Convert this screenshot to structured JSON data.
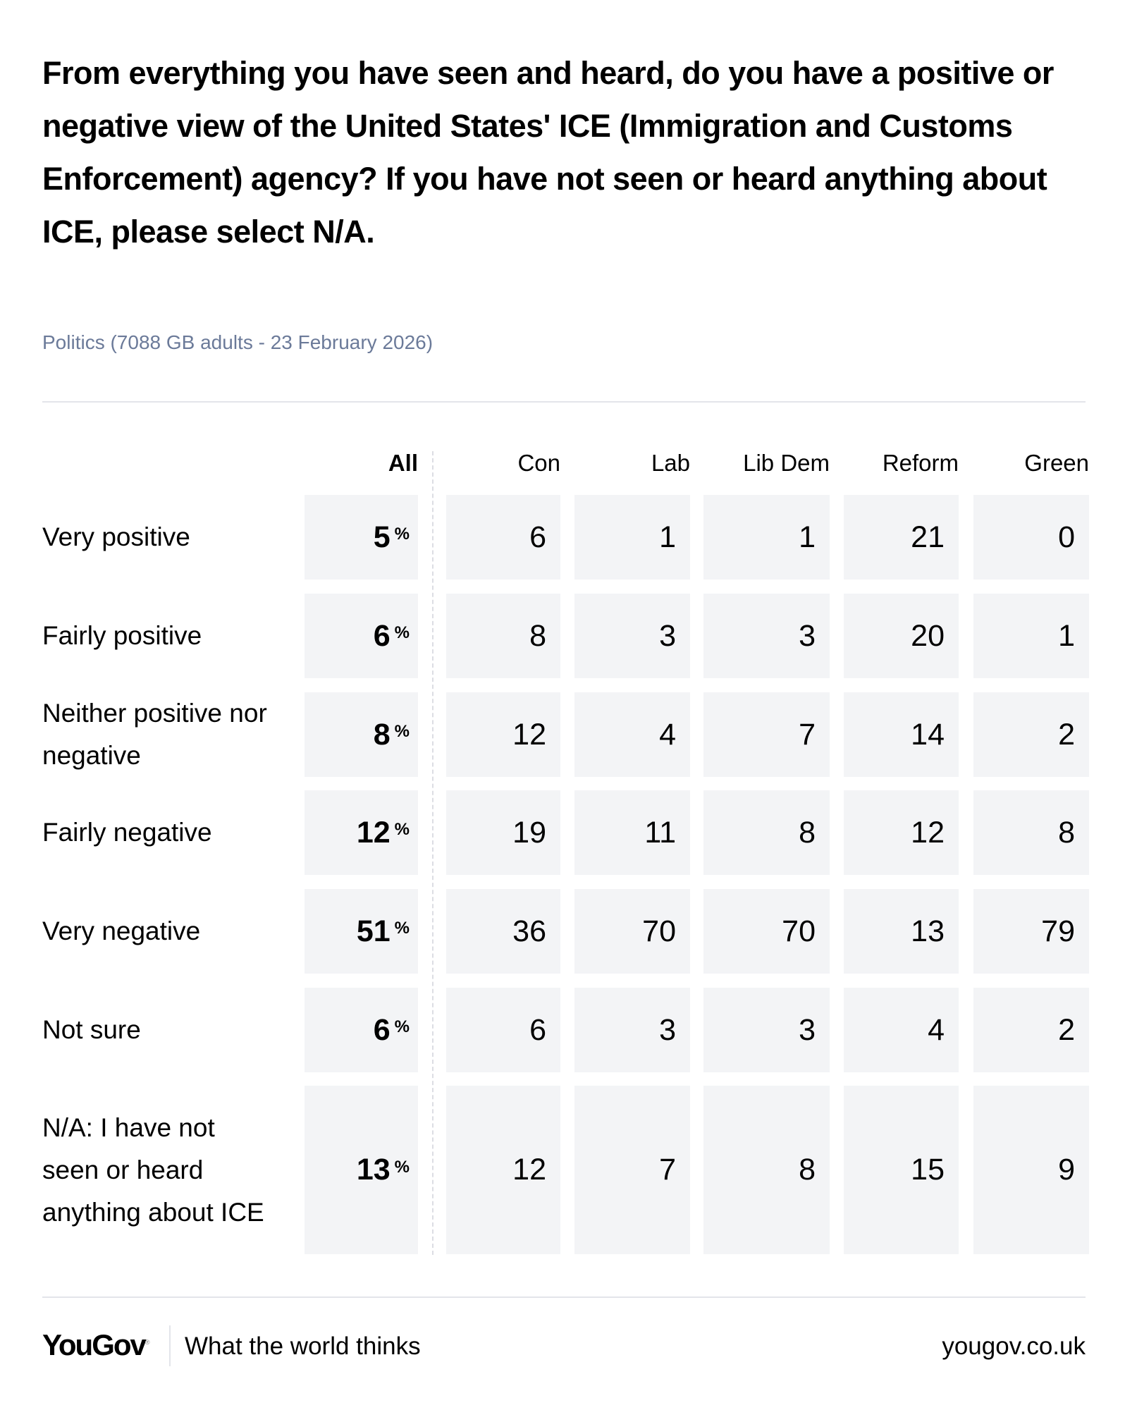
{
  "title": "From everything you have seen and heard, do you have a positive or negative view of the United States' ICE (Immigration and Customs Enforcement) agency? If you have not seen or heard anything about ICE, please select N/A.",
  "subtitle": "Politics (7088 GB adults - 23 February 2026)",
  "footer": {
    "logo": "YouGov",
    "logo_mark": "®",
    "tagline": "What the world thinks",
    "site": "yougov.co.uk"
  },
  "pct_symbol": "%",
  "chart_data": {
    "type": "table",
    "title": "From everything you have seen and heard, do you have a positive or negative view of the United States' ICE (Immigration and Customs Enforcement) agency? If you have not seen or heard anything about ICE, please select N/A.",
    "columns": [
      "All",
      "Con",
      "Lab",
      "Lib Dem",
      "Reform",
      "Green"
    ],
    "rows": [
      {
        "label": "Very positive",
        "values": [
          5,
          6,
          1,
          1,
          21,
          0
        ]
      },
      {
        "label": "Fairly positive",
        "values": [
          6,
          8,
          3,
          3,
          20,
          1
        ]
      },
      {
        "label": "Neither positive nor negative",
        "values": [
          8,
          12,
          4,
          7,
          14,
          2
        ]
      },
      {
        "label": "Fairly negative",
        "values": [
          12,
          19,
          11,
          8,
          12,
          8
        ]
      },
      {
        "label": "Very negative",
        "values": [
          51,
          36,
          70,
          70,
          13,
          79
        ]
      },
      {
        "label": "Not sure",
        "values": [
          6,
          6,
          3,
          3,
          4,
          2
        ]
      },
      {
        "label": "N/A: I have not seen or heard anything about ICE",
        "values": [
          13,
          12,
          7,
          8,
          15,
          9
        ]
      }
    ],
    "unit": "%"
  }
}
